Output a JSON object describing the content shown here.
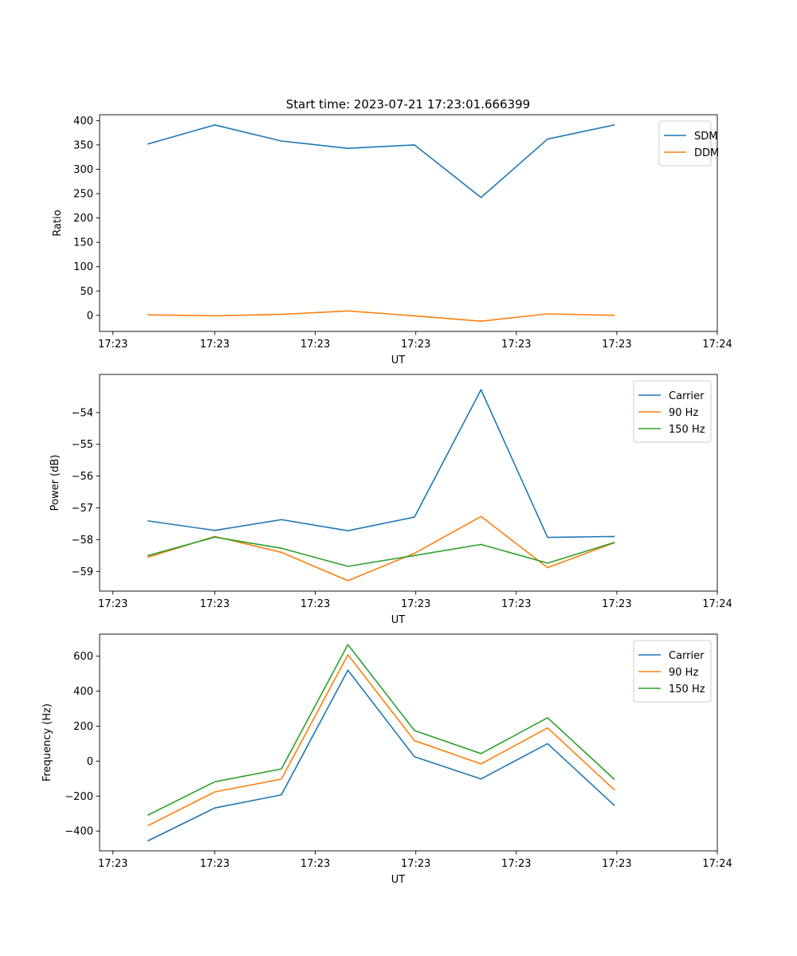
{
  "colors": {
    "blue": "#1f77b4",
    "orange": "#ff7f0e",
    "green": "#2ca02c"
  },
  "chart_data": [
    {
      "type": "line",
      "title": "Start time: 2023-07-21 17:23:01.666399",
      "xlabel": "UT",
      "ylabel": "Ratio",
      "x": [
        0,
        1,
        2,
        3,
        4,
        5,
        6,
        7
      ],
      "xlim": [
        -0.73,
        8.55
      ],
      "x_ticks": [
        -0.53,
        1.0,
        2.51,
        4.02,
        5.53,
        7.04,
        8.55
      ],
      "x_tick_labels": [
        "17:23",
        "17:23",
        "17:23",
        "17:23",
        "17:23",
        "17:23",
        "17:24"
      ],
      "ylim": [
        -33,
        412
      ],
      "y_ticks": [
        0,
        50,
        100,
        150,
        200,
        250,
        300,
        350,
        400
      ],
      "y_tick_labels": [
        "0",
        "50",
        "100",
        "150",
        "200",
        "250",
        "300",
        "350",
        "400"
      ],
      "legend_position": "top-right",
      "series": [
        {
          "name": "SDM",
          "color": "#1f77b4",
          "values": [
            352,
            391,
            358,
            343,
            350,
            242,
            362,
            391
          ]
        },
        {
          "name": "DDM",
          "color": "#ff7f0e",
          "values": [
            1,
            -1,
            2,
            9,
            -1,
            -12,
            3,
            0
          ]
        }
      ]
    },
    {
      "type": "line",
      "xlabel": "UT",
      "ylabel": "Power (dB)",
      "x": [
        0,
        1,
        2,
        3,
        4,
        5,
        6,
        7
      ],
      "xlim": [
        -0.73,
        8.55
      ],
      "x_ticks": [
        -0.53,
        1.0,
        2.51,
        4.02,
        5.53,
        7.04,
        8.55
      ],
      "x_tick_labels": [
        "17:23",
        "17:23",
        "17:23",
        "17:23",
        "17:23",
        "17:23",
        "17:24"
      ],
      "ylim": [
        -59.62,
        -52.8
      ],
      "y_ticks": [
        -59,
        -58,
        -57,
        -56,
        -55,
        -54
      ],
      "y_tick_labels": [
        "−59",
        "−58",
        "−57",
        "−56",
        "−55",
        "−54"
      ],
      "legend_position": "top-right",
      "series": [
        {
          "name": "Carrier",
          "color": "#1f77b4",
          "values": [
            -57.41,
            -57.71,
            -57.37,
            -57.72,
            -57.29,
            -53.28,
            -57.93,
            -57.9
          ]
        },
        {
          "name": "90 Hz",
          "color": "#ff7f0e",
          "values": [
            -58.55,
            -57.9,
            -58.4,
            -59.29,
            -58.43,
            -57.27,
            -58.88,
            -58.1
          ]
        },
        {
          "name": "150 Hz",
          "color": "#2ca02c",
          "values": [
            -58.5,
            -57.92,
            -58.27,
            -58.84,
            -58.5,
            -58.15,
            -58.74,
            -58.09
          ]
        }
      ]
    },
    {
      "type": "line",
      "xlabel": "UT",
      "ylabel": "Frequency (Hz)",
      "x": [
        0,
        1,
        2,
        3,
        4,
        5,
        6,
        7
      ],
      "xlim": [
        -0.73,
        8.55
      ],
      "x_ticks": [
        -0.53,
        1.0,
        2.51,
        4.02,
        5.53,
        7.04,
        8.55
      ],
      "x_tick_labels": [
        "17:23",
        "17:23",
        "17:23",
        "17:23",
        "17:23",
        "17:23",
        "17:24"
      ],
      "ylim": [
        -513,
        726
      ],
      "y_ticks": [
        -400,
        -200,
        0,
        200,
        400,
        600
      ],
      "y_tick_labels": [
        "−400",
        "−200",
        "0",
        "200",
        "400",
        "600"
      ],
      "legend_position": "top-right",
      "series": [
        {
          "name": "Carrier",
          "color": "#1f77b4",
          "values": [
            -455,
            -268,
            -193,
            520,
            25,
            -102,
            100,
            -252
          ]
        },
        {
          "name": "90 Hz",
          "color": "#ff7f0e",
          "values": [
            -368,
            -176,
            -103,
            608,
            117,
            -16,
            190,
            -163
          ]
        },
        {
          "name": "150 Hz",
          "color": "#2ca02c",
          "values": [
            -308,
            -118,
            -45,
            666,
            175,
            43,
            248,
            -103
          ]
        }
      ]
    }
  ]
}
